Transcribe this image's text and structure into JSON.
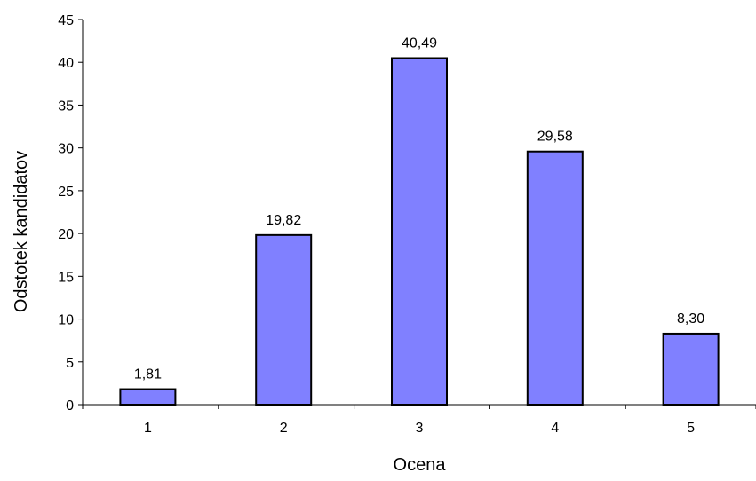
{
  "chart_data": {
    "type": "bar",
    "categories": [
      "1",
      "2",
      "3",
      "4",
      "5"
    ],
    "values": [
      1.81,
      19.82,
      40.49,
      29.58,
      8.3
    ],
    "value_labels": [
      "1,81",
      "19,82",
      "40,49",
      "29,58",
      "8,30"
    ],
    "xlabel": "Ocena",
    "ylabel": "Odstotek kandidatov",
    "ylim": [
      0,
      45
    ],
    "yticks": [
      0,
      5,
      10,
      15,
      20,
      25,
      30,
      35,
      40,
      45
    ],
    "grid": false,
    "legend": "none",
    "bar_color": "#8080ff",
    "bar_outline": "#000000"
  }
}
